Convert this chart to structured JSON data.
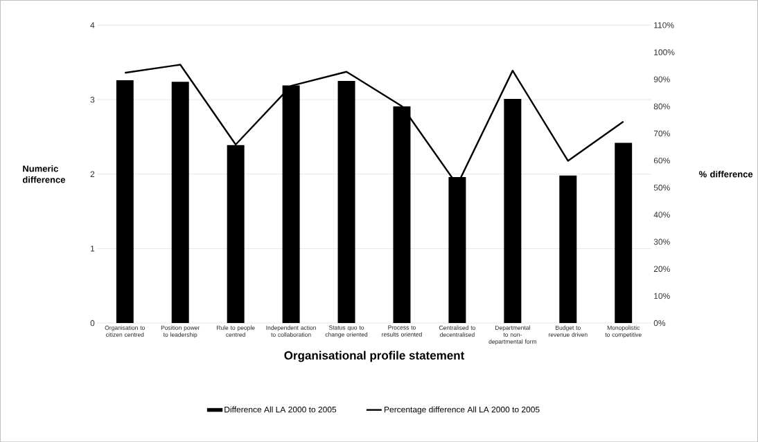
{
  "chart_data": {
    "type": "bar",
    "xlabel": "Organisational profile statement",
    "ylabel": "Numeric difference",
    "y2label": "% difference",
    "categories": [
      "Organisation to citizen centred",
      "Position power to leadership",
      "Rule to people centred",
      "Independent action to collaboration",
      "Status quo to change oriented",
      "Process to results oriented",
      "Centralised to decentralised",
      "Departmental to non-departmental form",
      "Budget to revenue driven",
      "Monopolistic to competitive"
    ],
    "series": [
      {
        "name": "Difference All LA 2000 to 2005",
        "color": "#000000",
        "values": [
          3.26,
          3.24,
          2.39,
          3.19,
          3.25,
          2.91,
          1.96,
          3.01,
          1.98,
          2.42
        ]
      },
      {
        "name": "Percentage difference All LA 2000 to 2005",
        "type": "line",
        "axis": "y2",
        "color": "#000000",
        "values": [
          92.4,
          95.4,
          65.9,
          87.6,
          92.8,
          80.1,
          51.0,
          93.2,
          59.9,
          74.4
        ]
      }
    ],
    "ylim": [
      0,
      4
    ],
    "yticks": [
      0,
      1,
      2,
      3,
      4
    ],
    "y2lim": [
      0,
      110
    ],
    "y2ticks": [
      {
        "value": 0,
        "label": "0%"
      },
      {
        "value": 10,
        "label": "10%"
      },
      {
        "value": 20,
        "label": "20%"
      },
      {
        "value": 30,
        "label": "30%"
      },
      {
        "value": 40,
        "label": "40%"
      },
      {
        "value": 50,
        "label": "50%"
      },
      {
        "value": 60,
        "label": "60%"
      },
      {
        "value": 70,
        "label": "70%"
      },
      {
        "value": 80,
        "label": "80%"
      },
      {
        "value": 90,
        "label": "90%"
      },
      {
        "value": 100,
        "label": "100%"
      },
      {
        "value": 110,
        "label": "110%"
      }
    ],
    "grid": "y",
    "legend": "bottom"
  }
}
